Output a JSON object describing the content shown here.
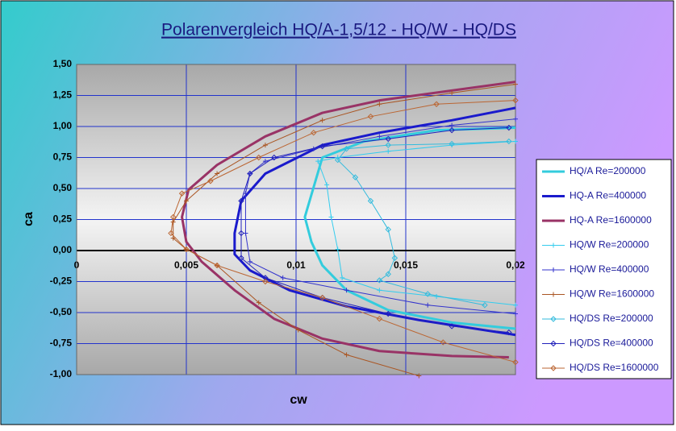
{
  "chart_data": {
    "type": "line",
    "title": "Polarenvergleich HQ/A-1,5/12 - HQ/W - HQ/DS",
    "x_label": "cw",
    "y_label": "ca",
    "xlim": [
      0,
      0.02
    ],
    "ylim": [
      -1,
      1.5
    ],
    "xticks": [
      0,
      {
        "value": 0.005,
        "label": "0,005"
      },
      {
        "value": 0.01,
        "label": "0,01"
      },
      {
        "value": 0.015,
        "label": "0,015"
      },
      {
        "value": 0.02,
        "label": "0,02"
      }
    ],
    "yticks": [
      {
        "value": -1,
        "label": "-1,00"
      },
      {
        "value": -0.75,
        "label": "-0,75"
      },
      {
        "value": -0.5,
        "label": "-0,50"
      },
      {
        "value": -0.25,
        "label": "-0,25"
      },
      {
        "value": 0,
        "label": "0,00"
      },
      {
        "value": 0.25,
        "label": "0,25"
      },
      {
        "value": 0.5,
        "label": "0,50"
      },
      {
        "value": 0.75,
        "label": "0,75"
      },
      {
        "value": 1,
        "label": "1,00"
      },
      {
        "value": 1.25,
        "label": "1,25"
      },
      {
        "value": 1.5,
        "label": "1,50"
      }
    ],
    "grid": true,
    "legend": "right",
    "series": [
      {
        "name": "HQ/A Re=200000",
        "color": "#33ccdd",
        "line_width": 3,
        "marker": "none",
        "x": [
          0.02,
          0.0164,
          0.0131,
          0.0112,
          0.0104,
          0.0107,
          0.0112,
          0.0123,
          0.0142,
          0.0171,
          0.02
        ],
        "values": [
          0.99,
          0.97,
          0.88,
          0.75,
          0.27,
          0.07,
          -0.12,
          -0.32,
          -0.48,
          -0.58,
          -0.63
        ]
      },
      {
        "name": "HQ-A Re=400000",
        "color": "#1a1acc",
        "line_width": 3,
        "marker": "none",
        "x": [
          0.02,
          0.0171,
          0.0138,
          0.0112,
          0.0086,
          0.0075,
          0.0072,
          0.0072,
          0.0079,
          0.0097,
          0.0123,
          0.0156,
          0.02
        ],
        "values": [
          1.15,
          1.05,
          0.95,
          0.85,
          0.62,
          0.4,
          0.14,
          -0.03,
          -0.16,
          -0.32,
          -0.45,
          -0.56,
          -0.68
        ]
      },
      {
        "name": "HQ-A Re=1600000",
        "color": "#993366",
        "line_width": 3,
        "marker": "none",
        "x": [
          0.02,
          0.0171,
          0.0138,
          0.0112,
          0.0086,
          0.0064,
          0.0051,
          0.0048,
          0.005,
          0.0057,
          0.0072,
          0.009,
          0.0112,
          0.0138,
          0.0171,
          0.0197
        ],
        "values": [
          1.36,
          1.29,
          1.21,
          1.11,
          0.92,
          0.69,
          0.49,
          0.27,
          0.07,
          -0.09,
          -0.32,
          -0.55,
          -0.71,
          -0.81,
          -0.85,
          -0.86
        ]
      },
      {
        "name": "HQ/W Re=200000",
        "color": "#33ccee",
        "line_width": 1,
        "marker": "plus",
        "x": [
          0.02,
          0.0171,
          0.0142,
          0.0119,
          0.011,
          0.0114,
          0.0116,
          0.0119,
          0.0121,
          0.0138,
          0.0164,
          0.02
        ],
        "values": [
          0.88,
          0.85,
          0.8,
          0.75,
          0.72,
          0.53,
          0.27,
          0.01,
          -0.22,
          -0.32,
          -0.37,
          -0.44
        ]
      },
      {
        "name": "HQ/W Re=400000",
        "color": "#3333cc",
        "line_width": 1,
        "marker": "plus",
        "x": [
          0.02,
          0.0171,
          0.0138,
          0.0108,
          0.0086,
          0.0079,
          0.0077,
          0.0077,
          0.0079,
          0.0094,
          0.0123,
          0.016,
          0.02
        ],
        "values": [
          1.06,
          1.01,
          0.92,
          0.82,
          0.72,
          0.62,
          0.46,
          0.14,
          -0.09,
          -0.22,
          -0.32,
          -0.44,
          -0.51
        ]
      },
      {
        "name": "HQ/W Re=1600000",
        "color": "#aa5522",
        "line_width": 1,
        "marker": "plus",
        "x": [
          0.02,
          0.0171,
          0.0138,
          0.0112,
          0.0086,
          0.0064,
          0.005,
          0.0044,
          0.0044,
          0.005,
          0.0064,
          0.0083,
          0.0101,
          0.0123,
          0.0156
        ],
        "values": [
          1.34,
          1.27,
          1.18,
          1.05,
          0.85,
          0.62,
          0.4,
          0.23,
          0.1,
          0.01,
          -0.12,
          -0.42,
          -0.64,
          -0.84,
          -1.01
        ]
      },
      {
        "name": "HQ/DS Re=200000",
        "color": "#33bbdd",
        "line_width": 1,
        "marker": "diamond",
        "x": [
          0.0197,
          0.0171,
          0.0142,
          0.0123,
          0.0119,
          0.0127,
          0.0134,
          0.0142,
          0.0145,
          0.0142,
          0.0138,
          0.016,
          0.0186
        ],
        "values": [
          0.88,
          0.86,
          0.85,
          0.82,
          0.73,
          0.59,
          0.4,
          0.17,
          -0.06,
          -0.19,
          -0.24,
          -0.35,
          -0.44
        ]
      },
      {
        "name": "HQ/DS Re=400000",
        "color": "#2222bb",
        "line_width": 1,
        "marker": "diamond",
        "x": [
          0.0197,
          0.0171,
          0.0142,
          0.0112,
          0.009,
          0.0079,
          0.0075,
          0.0075,
          0.0075,
          0.0086,
          0.0112,
          0.0142,
          0.0171,
          0.0197
        ],
        "values": [
          0.99,
          0.97,
          0.9,
          0.84,
          0.75,
          0.62,
          0.4,
          0.14,
          -0.06,
          -0.22,
          -0.38,
          -0.51,
          -0.61,
          -0.66
        ]
      },
      {
        "name": "HQ/DS Re=1600000",
        "color": "#bb6633",
        "line_width": 1,
        "marker": "diamond",
        "x": [
          0.02,
          0.0164,
          0.0134,
          0.0108,
          0.0083,
          0.0061,
          0.0048,
          0.0044,
          0.0043,
          0.005,
          0.0064,
          0.0086,
          0.0112,
          0.0138,
          0.0167,
          0.02
        ],
        "values": [
          1.21,
          1.18,
          1.08,
          0.95,
          0.75,
          0.56,
          0.46,
          0.27,
          0.14,
          0.01,
          -0.12,
          -0.25,
          -0.38,
          -0.55,
          -0.74,
          -0.9
        ]
      }
    ]
  }
}
